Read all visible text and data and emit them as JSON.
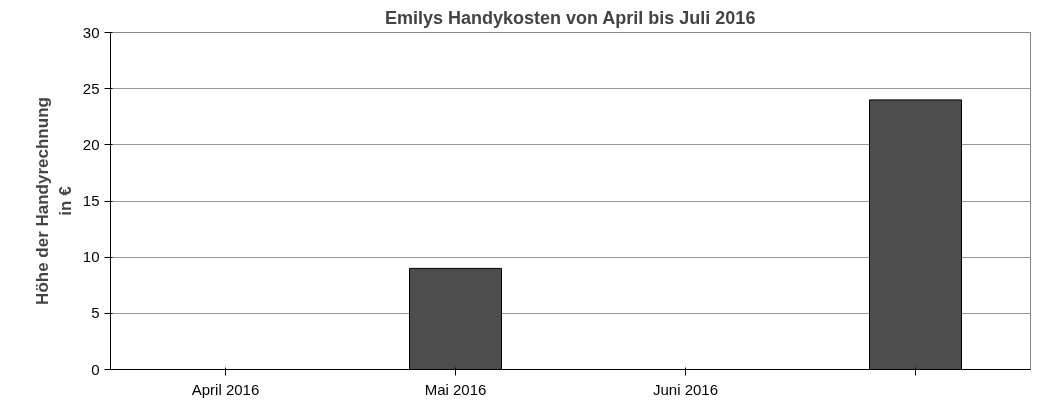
{
  "chart_data": {
    "type": "bar",
    "title": "Emilys Handykosten von April bis Juli 2016",
    "ylabel": "Höhe der Handyrechnung in €",
    "categories": [
      "April 2016",
      "Mai 2016",
      "Juni 2016",
      null
    ],
    "values": [
      null,
      9,
      null,
      24
    ],
    "color": "#4d4d4d",
    "ylim": [
      0,
      30
    ],
    "yticks": [
      0,
      5,
      10,
      15,
      20,
      25,
      30
    ],
    "grid": "y"
  }
}
